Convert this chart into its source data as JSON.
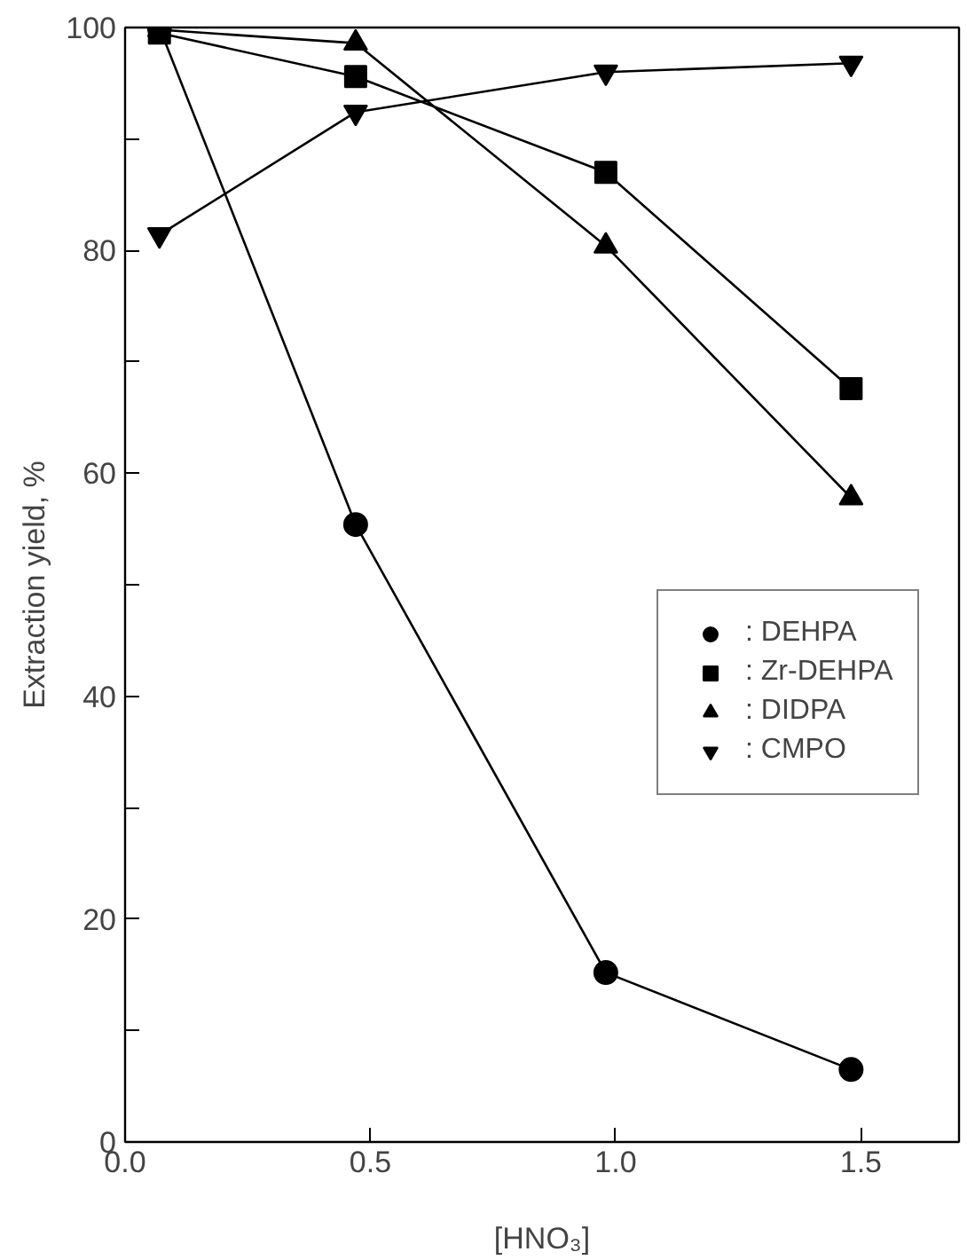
{
  "chart_data": {
    "type": "line",
    "xlabel": "[HNO₃]",
    "ylabel": "Extraction yield, %",
    "xlim": [
      0,
      1.7
    ],
    "ylim": [
      0,
      100
    ],
    "xticks": [
      {
        "value": 0,
        "label": "0.0"
      },
      {
        "value": 0.5,
        "label": "0.5"
      },
      {
        "value": 1,
        "label": "1.0"
      },
      {
        "value": 1.5,
        "label": "1.5"
      }
    ],
    "yticks": [
      0,
      {
        "value": 10,
        "label": null
      },
      20,
      {
        "value": 30,
        "label": null
      },
      40,
      {
        "value": 50,
        "label": null
      },
      60,
      {
        "value": 70,
        "label": null
      },
      80,
      {
        "value": 90,
        "label": null
      },
      100
    ],
    "x": [
      0.07,
      0.47,
      0.98,
      1.48
    ],
    "series": [
      {
        "name": ": DEHPA",
        "color": "#000000",
        "marker": "circle",
        "values": [
          100,
          55.4,
          15.2,
          6.5
        ]
      },
      {
        "name": ": Zr-DEHPA",
        "color": "#000000",
        "marker": "square",
        "values": [
          99.5,
          95.6,
          87.0,
          67.6
        ]
      },
      {
        "name": ": DIDPA",
        "color": "#000000",
        "marker": "triangle",
        "values": [
          99.8,
          98.6,
          80.4,
          57.8
        ]
      },
      {
        "name": ": CMPO",
        "color": "#000000",
        "marker": "triangle",
        "values": [
          81.4,
          92.4,
          96.0,
          96.8
        ]
      }
    ],
    "legend": "right",
    "grid": false,
    "line_style": "solid"
  }
}
